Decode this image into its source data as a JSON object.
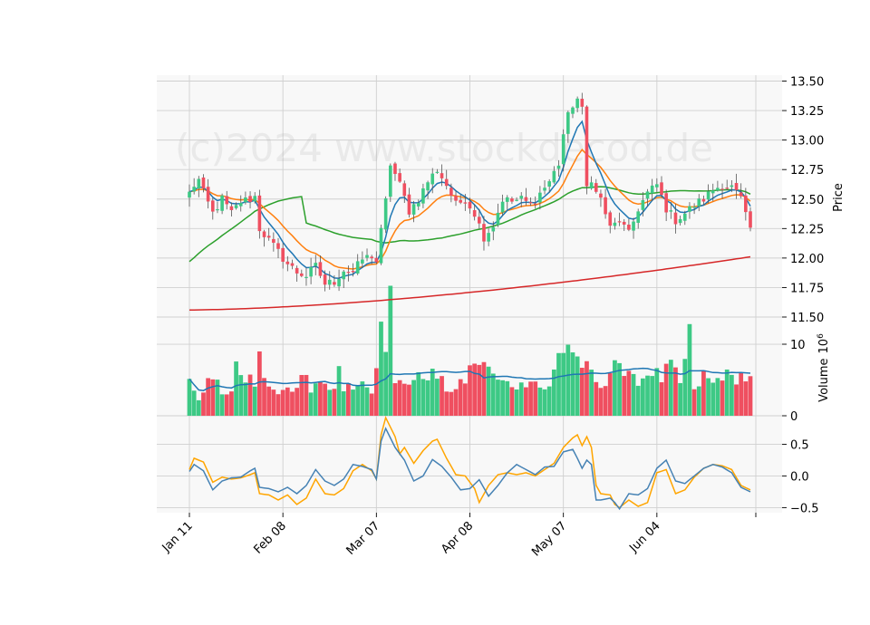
{
  "watermark": "(c)2024 www.stockdecod.de",
  "colors": {
    "up": "#3dc985",
    "down": "#ef4f60",
    "ma_short": "#1f77b4",
    "ma_mid": "#ff7f0e",
    "ma_long": "#2ca02c",
    "ma_200": "#d62728",
    "vol_ma": "#1f77b4",
    "osc_a": "#4682b4",
    "osc_b": "#ffa500",
    "panel_bg": "#f8f8f8",
    "grid": "#d0d0d0"
  },
  "chart_data": {
    "type": "candlestick",
    "x_ticks": [
      {
        "label": "Jan 11",
        "index": 0
      },
      {
        "label": "Feb 08",
        "index": 20
      },
      {
        "label": "Mar 07",
        "index": 40
      },
      {
        "label": "Apr 08",
        "index": 60
      },
      {
        "label": "May 07",
        "index": 80
      },
      {
        "label": "Jun 04",
        "index": 100
      },
      {
        "label": "",
        "index": 120
      }
    ],
    "price_panel": {
      "ylabel": "Price",
      "ylim": [
        11.5,
        13.55
      ],
      "yticks": [
        11.5,
        11.75,
        12.0,
        12.25,
        12.5,
        12.75,
        13.0,
        13.25,
        13.5
      ],
      "ytick_labels": [
        "11.50",
        "11.75",
        "12.00",
        "12.25",
        "12.50",
        "12.75",
        "13.00",
        "13.25",
        "13.50"
      ]
    },
    "volume_panel": {
      "ylabel": "Volume",
      "unit": "10",
      "unit_exp": "6",
      "ylim": [
        0,
        13.8
      ],
      "yticks": [
        0,
        10
      ],
      "ytick_labels": [
        "0",
        "10"
      ]
    },
    "osc_panel": {
      "ylim": [
        -0.58,
        0.95
      ],
      "yticks": [
        -0.5,
        0.0,
        0.5
      ],
      "ytick_labels": [
        "−0.5",
        "0.0",
        "0.5"
      ]
    },
    "close_anchors": [
      [
        0,
        12.55
      ],
      [
        1,
        12.62
      ],
      [
        2,
        12.66
      ],
      [
        3,
        12.55
      ],
      [
        5,
        12.38
      ],
      [
        7,
        12.5
      ],
      [
        9,
        12.38
      ],
      [
        11,
        12.48
      ],
      [
        13,
        12.5
      ],
      [
        14,
        12.52
      ],
      [
        15,
        12.25
      ],
      [
        17,
        12.15
      ],
      [
        19,
        12.05
      ],
      [
        21,
        11.95
      ],
      [
        23,
        11.88
      ],
      [
        25,
        11.85
      ],
      [
        27,
        11.93
      ],
      [
        29,
        11.78
      ],
      [
        31,
        11.8
      ],
      [
        33,
        11.9
      ],
      [
        35,
        11.88
      ],
      [
        37,
        11.99
      ],
      [
        39,
        12.02
      ],
      [
        40,
        11.97
      ],
      [
        42,
        12.48
      ],
      [
        43,
        12.8
      ],
      [
        45,
        12.62
      ],
      [
        47,
        12.4
      ],
      [
        49,
        12.5
      ],
      [
        51,
        12.65
      ],
      [
        53,
        12.75
      ],
      [
        55,
        12.62
      ],
      [
        57,
        12.45
      ],
      [
        59,
        12.5
      ],
      [
        61,
        12.38
      ],
      [
        63,
        12.18
      ],
      [
        65,
        12.28
      ],
      [
        67,
        12.5
      ],
      [
        69,
        12.48
      ],
      [
        71,
        12.5
      ],
      [
        73,
        12.45
      ],
      [
        75,
        12.55
      ],
      [
        77,
        12.65
      ],
      [
        79,
        12.8
      ],
      [
        80,
        13.05
      ],
      [
        81,
        13.2
      ],
      [
        82,
        13.3
      ],
      [
        83,
        13.35
      ],
      [
        84,
        13.25
      ],
      [
        85,
        12.6
      ],
      [
        86,
        12.68
      ],
      [
        87,
        12.55
      ],
      [
        88,
        12.5
      ],
      [
        89,
        12.38
      ],
      [
        90,
        12.25
      ],
      [
        92,
        12.32
      ],
      [
        94,
        12.2
      ],
      [
        96,
        12.42
      ],
      [
        98,
        12.55
      ],
      [
        100,
        12.62
      ],
      [
        102,
        12.42
      ],
      [
        104,
        12.32
      ],
      [
        106,
        12.38
      ],
      [
        108,
        12.45
      ],
      [
        110,
        12.5
      ],
      [
        112,
        12.58
      ],
      [
        114,
        12.62
      ],
      [
        116,
        12.6
      ],
      [
        118,
        12.5
      ],
      [
        119,
        12.35
      ],
      [
        120,
        12.25
      ]
    ],
    "volume_anchors": [
      [
        0,
        4.5
      ],
      [
        1,
        3.8
      ],
      [
        2,
        2.7
      ],
      [
        3,
        3.6
      ],
      [
        4,
        5.2
      ],
      [
        5,
        4.8
      ],
      [
        6,
        4.7
      ],
      [
        7,
        2.8
      ],
      [
        9,
        3.2
      ],
      [
        10,
        6.5
      ],
      [
        11,
        5.3
      ],
      [
        13,
        5.6
      ],
      [
        14,
        4.6
      ],
      [
        15,
        8.4
      ],
      [
        16,
        5.4
      ],
      [
        18,
        3.4
      ],
      [
        19,
        3.2
      ],
      [
        21,
        4.4
      ],
      [
        22,
        3.6
      ],
      [
        24,
        5.6
      ],
      [
        25,
        4.8
      ],
      [
        26,
        3.0
      ],
      [
        27,
        4.5
      ],
      [
        29,
        4.0
      ],
      [
        31,
        3.8
      ],
      [
        32,
        7.0
      ],
      [
        33,
        4.0
      ],
      [
        35,
        3.9
      ],
      [
        36,
        5.3
      ],
      [
        37,
        4.6
      ],
      [
        39,
        3.7
      ],
      [
        40,
        7.8
      ],
      [
        41,
        15.5
      ],
      [
        42,
        10.5
      ],
      [
        43,
        16.4
      ],
      [
        44,
        4.2
      ],
      [
        45,
        4.6
      ],
      [
        47,
        4.9
      ],
      [
        49,
        5.2
      ],
      [
        51,
        5.9
      ],
      [
        53,
        5.5
      ],
      [
        55,
        3.8
      ],
      [
        57,
        3.6
      ],
      [
        59,
        5.0
      ],
      [
        61,
        7.9
      ],
      [
        62,
        6.3
      ],
      [
        63,
        8.2
      ],
      [
        65,
        5.4
      ],
      [
        67,
        4.6
      ],
      [
        69,
        4.4
      ],
      [
        71,
        4.2
      ],
      [
        73,
        5.6
      ],
      [
        75,
        4.0
      ],
      [
        77,
        3.8
      ],
      [
        79,
        8.5
      ],
      [
        81,
        10.2
      ],
      [
        83,
        8.0
      ],
      [
        85,
        6.5
      ],
      [
        87,
        4.5
      ],
      [
        89,
        3.6
      ],
      [
        91,
        9.5
      ],
      [
        93,
        5.8
      ],
      [
        95,
        4.9
      ],
      [
        97,
        5.4
      ],
      [
        99,
        6.4
      ],
      [
        101,
        5.1
      ],
      [
        103,
        7.2
      ],
      [
        105,
        4.1
      ],
      [
        107,
        12.0
      ],
      [
        108,
        3.2
      ],
      [
        110,
        5.7
      ],
      [
        112,
        4.4
      ],
      [
        114,
        5.9
      ],
      [
        116,
        5.2
      ],
      [
        118,
        5.6
      ],
      [
        120,
        4.9
      ]
    ],
    "osc_a_anchors": [
      [
        0,
        0.07
      ],
      [
        1,
        0.18
      ],
      [
        3,
        0.08
      ],
      [
        5,
        -0.22
      ],
      [
        7,
        -0.08
      ],
      [
        9,
        -0.03
      ],
      [
        11,
        -0.02
      ],
      [
        13,
        0.08
      ],
      [
        14,
        0.12
      ],
      [
        15,
        -0.18
      ],
      [
        17,
        -0.2
      ],
      [
        19,
        -0.25
      ],
      [
        21,
        -0.18
      ],
      [
        23,
        -0.28
      ],
      [
        25,
        -0.15
      ],
      [
        27,
        0.1
      ],
      [
        29,
        -0.08
      ],
      [
        31,
        -0.15
      ],
      [
        33,
        -0.05
      ],
      [
        35,
        0.18
      ],
      [
        37,
        0.15
      ],
      [
        39,
        0.1
      ],
      [
        40,
        -0.05
      ],
      [
        41,
        0.55
      ],
      [
        42,
        0.75
      ],
      [
        44,
        0.45
      ],
      [
        46,
        0.25
      ],
      [
        48,
        -0.08
      ],
      [
        50,
        0.0
      ],
      [
        52,
        0.26
      ],
      [
        54,
        0.15
      ],
      [
        56,
        -0.02
      ],
      [
        58,
        -0.22
      ],
      [
        60,
        -0.2
      ],
      [
        62,
        -0.06
      ],
      [
        64,
        -0.32
      ],
      [
        66,
        -0.15
      ],
      [
        68,
        0.05
      ],
      [
        70,
        0.18
      ],
      [
        72,
        0.1
      ],
      [
        74,
        0.02
      ],
      [
        76,
        0.14
      ],
      [
        78,
        0.15
      ],
      [
        80,
        0.38
      ],
      [
        82,
        0.42
      ],
      [
        83,
        0.28
      ],
      [
        84,
        0.12
      ],
      [
        85,
        0.25
      ],
      [
        86,
        0.18
      ],
      [
        87,
        -0.38
      ],
      [
        88,
        -0.38
      ],
      [
        90,
        -0.35
      ],
      [
        91,
        -0.42
      ],
      [
        92,
        -0.52
      ],
      [
        94,
        -0.28
      ],
      [
        96,
        -0.3
      ],
      [
        98,
        -0.2
      ],
      [
        100,
        0.12
      ],
      [
        102,
        0.25
      ],
      [
        104,
        -0.08
      ],
      [
        106,
        -0.12
      ],
      [
        108,
        0.0
      ],
      [
        110,
        0.12
      ],
      [
        112,
        0.18
      ],
      [
        114,
        0.14
      ],
      [
        116,
        0.05
      ],
      [
        118,
        -0.18
      ],
      [
        120,
        -0.25
      ]
    ],
    "osc_b_anchors": [
      [
        0,
        0.1
      ],
      [
        1,
        0.28
      ],
      [
        3,
        0.22
      ],
      [
        5,
        -0.1
      ],
      [
        7,
        -0.02
      ],
      [
        9,
        -0.05
      ],
      [
        11,
        -0.03
      ],
      [
        13,
        0.02
      ],
      [
        14,
        0.05
      ],
      [
        15,
        -0.28
      ],
      [
        17,
        -0.3
      ],
      [
        19,
        -0.38
      ],
      [
        21,
        -0.3
      ],
      [
        23,
        -0.45
      ],
      [
        25,
        -0.35
      ],
      [
        27,
        -0.05
      ],
      [
        29,
        -0.28
      ],
      [
        31,
        -0.3
      ],
      [
        33,
        -0.2
      ],
      [
        35,
        0.08
      ],
      [
        37,
        0.18
      ],
      [
        39,
        0.08
      ],
      [
        40,
        -0.05
      ],
      [
        41,
        0.65
      ],
      [
        42,
        0.92
      ],
      [
        44,
        0.62
      ],
      [
        45,
        0.35
      ],
      [
        46,
        0.45
      ],
      [
        48,
        0.2
      ],
      [
        50,
        0.4
      ],
      [
        52,
        0.55
      ],
      [
        53,
        0.58
      ],
      [
        55,
        0.28
      ],
      [
        57,
        0.02
      ],
      [
        59,
        0.0
      ],
      [
        61,
        -0.2
      ],
      [
        62,
        -0.42
      ],
      [
        64,
        -0.15
      ],
      [
        66,
        0.02
      ],
      [
        68,
        0.05
      ],
      [
        70,
        0.02
      ],
      [
        72,
        0.05
      ],
      [
        74,
        0.0
      ],
      [
        76,
        0.1
      ],
      [
        78,
        0.2
      ],
      [
        80,
        0.45
      ],
      [
        82,
        0.6
      ],
      [
        83,
        0.65
      ],
      [
        84,
        0.48
      ],
      [
        85,
        0.62
      ],
      [
        86,
        0.45
      ],
      [
        87,
        -0.15
      ],
      [
        88,
        -0.28
      ],
      [
        90,
        -0.3
      ],
      [
        91,
        -0.45
      ],
      [
        92,
        -0.5
      ],
      [
        94,
        -0.38
      ],
      [
        96,
        -0.48
      ],
      [
        98,
        -0.42
      ],
      [
        100,
        0.05
      ],
      [
        102,
        0.1
      ],
      [
        104,
        -0.28
      ],
      [
        106,
        -0.22
      ],
      [
        108,
        -0.02
      ],
      [
        110,
        0.12
      ],
      [
        112,
        0.18
      ],
      [
        114,
        0.16
      ],
      [
        116,
        0.1
      ],
      [
        118,
        -0.15
      ],
      [
        120,
        -0.22
      ]
    ],
    "n_bars": 121
  }
}
